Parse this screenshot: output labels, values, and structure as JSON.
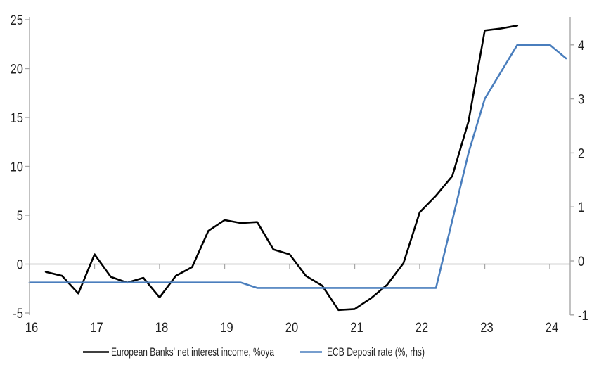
{
  "chart_data": {
    "type": "line",
    "title": "",
    "x": {
      "unit": "quarter",
      "start": "2016Q1",
      "end": "2024Q2",
      "tick_labels": [
        "16",
        "17",
        "18",
        "19",
        "20",
        "21",
        "22",
        "23",
        "24"
      ]
    },
    "left_axis": {
      "ticks": [
        25,
        20,
        15,
        10,
        5,
        0,
        -5
      ],
      "min": -5,
      "max": 25
    },
    "right_axis": {
      "ticks": [
        4,
        3,
        2,
        1,
        0,
        -1
      ],
      "min": -1,
      "max": 4
    },
    "grid": "zero-line-only",
    "legend_position": "bottom",
    "series": [
      {
        "name": "European Banks' net interest income, %oya",
        "axis": "left",
        "color": "#000000",
        "frequency": "quarterly",
        "start": "2016Q2",
        "start_index": 1,
        "values": [
          -0.8,
          -1.2,
          -3.0,
          1.0,
          -1.3,
          -1.9,
          -1.4,
          -3.4,
          -1.2,
          -0.3,
          3.4,
          4.5,
          4.2,
          4.3,
          1.5,
          1.0,
          -1.2,
          -2.2,
          -4.7,
          -4.6,
          -3.5,
          -2.1,
          0.1,
          5.3,
          7.0,
          9.0,
          14.6,
          23.9,
          24.1,
          24.4
        ]
      },
      {
        "name": "ECB Deposit rate (%, rhs)",
        "axis": "right",
        "color": "#4a7ebd",
        "frequency": "quarterly",
        "start": "2016Q1",
        "start_index": 0,
        "values": [
          -0.4,
          -0.4,
          -0.4,
          -0.4,
          -0.4,
          -0.4,
          -0.4,
          -0.4,
          -0.4,
          -0.4,
          -0.4,
          -0.4,
          -0.4,
          -0.4,
          -0.5,
          -0.5,
          -0.5,
          -0.5,
          -0.5,
          -0.5,
          -0.5,
          -0.5,
          -0.5,
          -0.5,
          -0.5,
          -0.5,
          0.75,
          2.0,
          3.0,
          3.5,
          4.0,
          4.0,
          4.0,
          3.75
        ]
      }
    ],
    "colors": {
      "axis_lines": "#a7a7a7",
      "tick_text": "#1f1f1f",
      "background": "#ffffff"
    }
  }
}
